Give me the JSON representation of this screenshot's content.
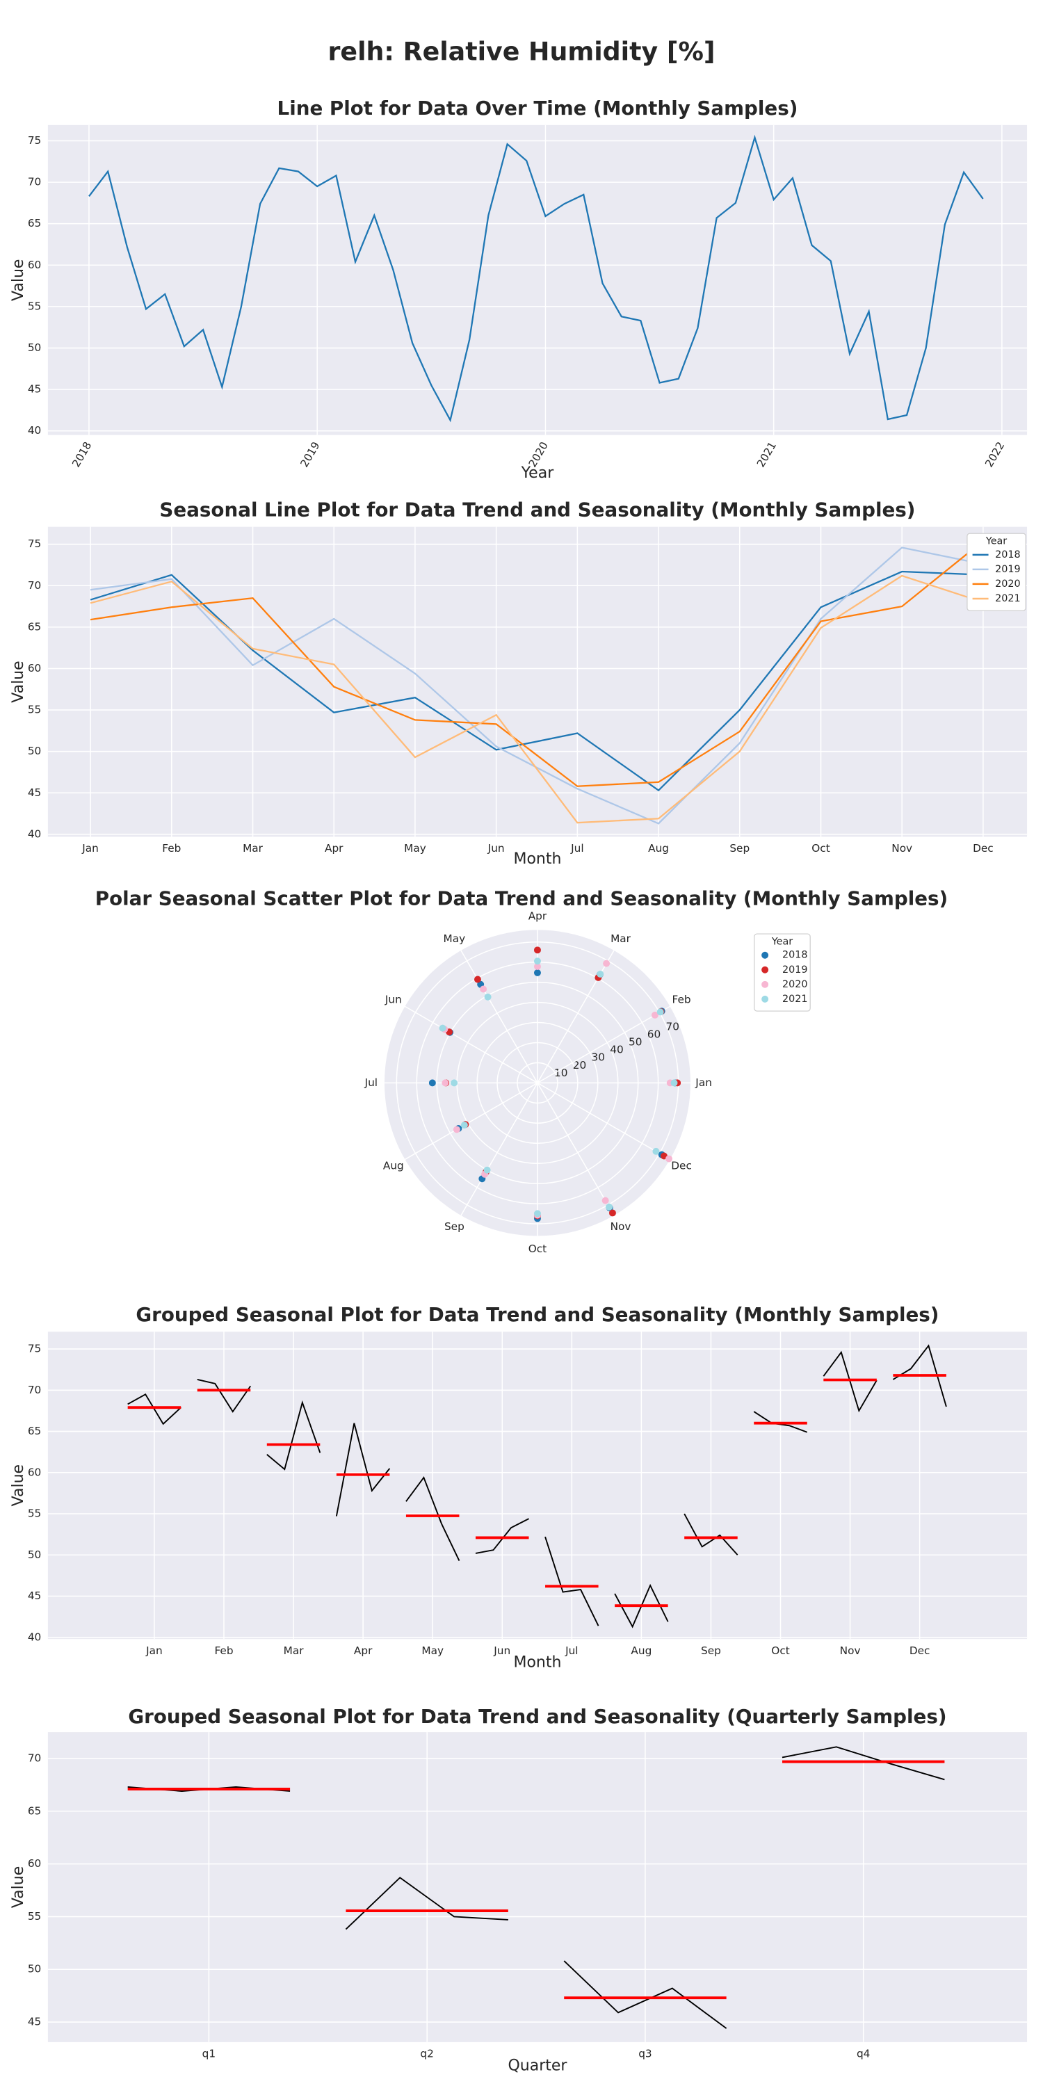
{
  "title": "relh: Relative Humidity [%]",
  "chart_data": [
    {
      "type": "line",
      "title": "Line Plot for Data Over Time (Monthly Samples)",
      "xlabel": "Year",
      "ylabel": "Value",
      "color": "#1f77b4",
      "grid": true,
      "x": [
        2018,
        2018.083,
        2018.167,
        2018.25,
        2018.333,
        2018.417,
        2018.5,
        2018.583,
        2018.667,
        2018.75,
        2018.833,
        2018.917,
        2019,
        2019.083,
        2019.167,
        2019.25,
        2019.333,
        2019.417,
        2019.5,
        2019.583,
        2019.667,
        2019.75,
        2019.833,
        2019.917,
        2020,
        2020.083,
        2020.167,
        2020.25,
        2020.333,
        2020.417,
        2020.5,
        2020.583,
        2020.667,
        2020.75,
        2020.833,
        2020.917,
        2021,
        2021.083,
        2021.167,
        2021.25,
        2021.333,
        2021.417,
        2021.5,
        2021.583,
        2021.667,
        2021.75,
        2021.833,
        2021.917
      ],
      "values": [
        68.3,
        71.3,
        62.2,
        54.7,
        56.5,
        50.2,
        52.2,
        45.3,
        55.0,
        67.4,
        71.7,
        71.3,
        69.5,
        70.8,
        60.4,
        66.0,
        59.4,
        50.6,
        45.5,
        41.3,
        51.0,
        66.0,
        74.6,
        72.6,
        65.9,
        67.4,
        68.5,
        57.8,
        53.8,
        53.3,
        45.8,
        46.3,
        52.4,
        65.7,
        67.5,
        75.4,
        67.9,
        70.5,
        62.4,
        60.5,
        49.3,
        54.4,
        41.4,
        41.9,
        50.0,
        64.9,
        71.2,
        68.0
      ],
      "xlim": [
        2017.82,
        2022.11
      ],
      "xticks": [
        2018,
        2019,
        2020,
        2021,
        2022
      ],
      "ylim": [
        39.5,
        76.9
      ],
      "yticks": [
        40,
        45,
        50,
        55,
        60,
        65,
        70,
        75
      ]
    },
    {
      "type": "line",
      "title": "Seasonal Line Plot for Data Trend and Seasonality (Monthly Samples)",
      "xlabel": "Month",
      "ylabel": "Value",
      "grid": true,
      "categories": [
        "Jan",
        "Feb",
        "Mar",
        "Apr",
        "May",
        "Jun",
        "Jul",
        "Aug",
        "Sep",
        "Oct",
        "Nov",
        "Dec"
      ],
      "legend_title": "Year",
      "legend": "upper right",
      "series": [
        {
          "name": "2018",
          "color": "#1f77b4",
          "values": [
            68.3,
            71.3,
            62.2,
            54.7,
            56.5,
            50.2,
            52.2,
            45.3,
            55.0,
            67.4,
            71.7,
            71.3
          ]
        },
        {
          "name": "2019",
          "color": "#aec7e8",
          "values": [
            69.5,
            70.8,
            60.4,
            66.0,
            59.4,
            50.6,
            45.5,
            41.3,
            51.0,
            66.0,
            74.6,
            72.6
          ]
        },
        {
          "name": "2020",
          "color": "#ff7f0e",
          "values": [
            65.9,
            67.4,
            68.5,
            57.8,
            53.8,
            53.3,
            45.8,
            46.3,
            52.4,
            65.7,
            67.5,
            75.4
          ]
        },
        {
          "name": "2021",
          "color": "#ffbb78",
          "values": [
            67.9,
            70.5,
            62.4,
            60.5,
            49.3,
            54.4,
            41.4,
            41.9,
            50.0,
            64.9,
            71.2,
            68.0
          ]
        }
      ],
      "ylim": [
        39.7,
        77.1
      ],
      "yticks": [
        40,
        45,
        50,
        55,
        60,
        65,
        70,
        75
      ]
    },
    {
      "type": "polar_scatter",
      "title": "Polar Seasonal Scatter Plot for Data Trend and Seasonality (Monthly Samples)",
      "grid": true,
      "categories": [
        "Jan",
        "Feb",
        "Mar",
        "Apr",
        "May",
        "Jun",
        "Jul",
        "Aug",
        "Sep",
        "Oct",
        "Nov",
        "Dec"
      ],
      "legend_title": "Year",
      "legend": "upper right",
      "series": [
        {
          "name": "2018",
          "color": "#1f77b4",
          "values": [
            68.3,
            71.3,
            62.2,
            54.7,
            56.5,
            50.2,
            52.2,
            45.3,
            55.0,
            67.4,
            71.7,
            71.3
          ]
        },
        {
          "name": "2019",
          "color": "#d62728",
          "values": [
            69.5,
            70.8,
            60.4,
            66.0,
            59.4,
            50.6,
            45.5,
            41.3,
            51.0,
            66.0,
            74.6,
            72.6
          ]
        },
        {
          "name": "2020",
          "color": "#f7b6d2",
          "values": [
            65.9,
            67.4,
            68.5,
            57.8,
            53.8,
            53.3,
            45.8,
            46.3,
            52.4,
            65.7,
            67.5,
            75.4
          ]
        },
        {
          "name": "2021",
          "color": "#9edae5",
          "values": [
            67.9,
            70.5,
            62.4,
            60.5,
            49.3,
            54.4,
            41.4,
            41.9,
            50.0,
            64.9,
            71.2,
            68.0
          ]
        }
      ],
      "rlim": [
        0,
        76
      ],
      "rticks": [
        10,
        20,
        30,
        40,
        50,
        60,
        70
      ]
    },
    {
      "type": "seasonal_groups",
      "title": "Grouped Seasonal Plot for Data Trend and Seasonality (Monthly Samples)",
      "xlabel": "Month",
      "ylabel": "Value",
      "grid": true,
      "categories": [
        "Jan",
        "Feb",
        "Mar",
        "Apr",
        "May",
        "Jun",
        "Jul",
        "Aug",
        "Sep",
        "Oct",
        "Nov",
        "Dec"
      ],
      "color": "#000000",
      "mean_color": "#ff0000",
      "values": [
        [
          68.3,
          69.5,
          65.9,
          67.9
        ],
        [
          71.3,
          70.8,
          67.4,
          70.5
        ],
        [
          62.2,
          60.4,
          68.5,
          62.4
        ],
        [
          54.7,
          66.0,
          57.8,
          60.5
        ],
        [
          56.5,
          59.4,
          53.8,
          49.3
        ],
        [
          50.2,
          50.6,
          53.3,
          54.4
        ],
        [
          52.2,
          45.5,
          45.8,
          41.4
        ],
        [
          45.3,
          41.3,
          46.3,
          41.9
        ],
        [
          55.0,
          51.0,
          52.4,
          50.0
        ],
        [
          67.4,
          66.0,
          65.7,
          64.9
        ],
        [
          71.7,
          74.6,
          67.5,
          71.2
        ],
        [
          71.3,
          72.6,
          75.4,
          68.0
        ]
      ],
      "means": [
        67.9,
        70.0,
        63.4,
        59.75,
        54.75,
        52.1,
        46.2,
        43.85,
        52.1,
        66.0,
        71.25,
        71.8
      ],
      "ylim": [
        39.8,
        77.1
      ],
      "yticks": [
        40,
        45,
        50,
        55,
        60,
        65,
        70,
        75
      ]
    },
    {
      "type": "seasonal_groups",
      "title": "Grouped Seasonal Plot for Data Trend and Seasonality (Quarterly Samples)",
      "xlabel": "Quarter",
      "ylabel": "Value",
      "grid": true,
      "categories": [
        "q1",
        "q2",
        "q3",
        "q4"
      ],
      "color": "#000000",
      "mean_color": "#ff0000",
      "values": [
        [
          67.3,
          66.9,
          67.3,
          66.9
        ],
        [
          53.8,
          58.7,
          55.0,
          54.7
        ],
        [
          50.8,
          45.9,
          48.2,
          44.4
        ],
        [
          70.1,
          71.1,
          69.5,
          68.0
        ]
      ],
      "means": [
        67.1,
        55.55,
        47.3,
        69.7
      ],
      "ylim": [
        43.1,
        72.5
      ],
      "yticks": [
        45,
        50,
        55,
        60,
        65,
        70
      ]
    }
  ]
}
